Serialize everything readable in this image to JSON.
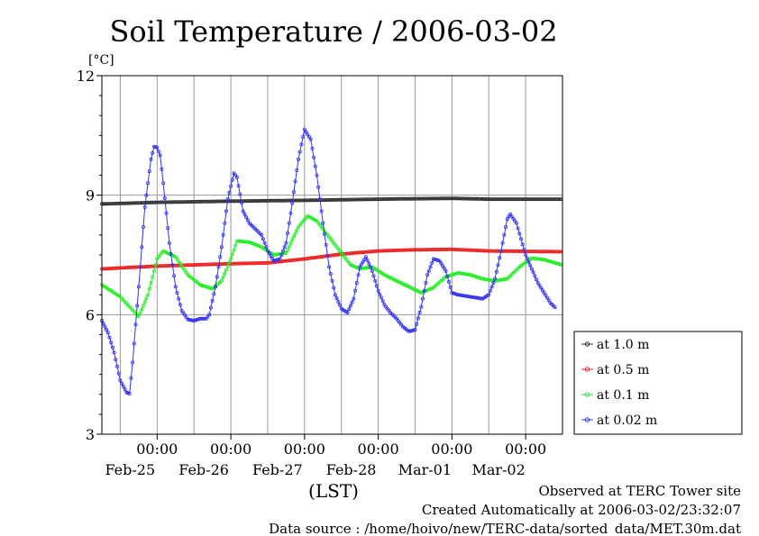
{
  "chart_data": {
    "type": "line",
    "title": "Soil Temperature / 2006-03-02",
    "ylabel": "[°C]",
    "xlabel": "(LST)",
    "ylim": [
      3,
      12
    ],
    "yticks": [
      3,
      6,
      9,
      12
    ],
    "xlim_hours": [
      -18,
      132
    ],
    "xticks": [
      {
        "time": "00:00",
        "date": "Feb-25"
      },
      {
        "time": "00:00",
        "date": "Feb-26"
      },
      {
        "time": "00:00",
        "date": "Feb-27"
      },
      {
        "time": "00:00",
        "date": "Feb-28"
      },
      {
        "time": "00:00",
        "date": "Mar-01"
      },
      {
        "time": "00:00",
        "date": "Mar-02"
      }
    ],
    "grid": true,
    "legend_position": "right",
    "series": [
      {
        "name": "at 1.0 m",
        "color": "#333333",
        "points": [
          [
            -18,
            8.78
          ],
          [
            0,
            8.82
          ],
          [
            24,
            8.85
          ],
          [
            48,
            8.87
          ],
          [
            72,
            8.9
          ],
          [
            96,
            8.92
          ],
          [
            108,
            8.9
          ],
          [
            132,
            8.9
          ]
        ]
      },
      {
        "name": "at 0.5 m",
        "color": "#ee2222",
        "points": [
          [
            -18,
            7.15
          ],
          [
            0,
            7.22
          ],
          [
            24,
            7.28
          ],
          [
            36,
            7.3
          ],
          [
            48,
            7.4
          ],
          [
            60,
            7.52
          ],
          [
            72,
            7.6
          ],
          [
            84,
            7.63
          ],
          [
            96,
            7.64
          ],
          [
            108,
            7.6
          ],
          [
            132,
            7.58
          ]
        ]
      },
      {
        "name": "at 0.1 m",
        "color": "#22ee22",
        "points": [
          [
            -18,
            6.75
          ],
          [
            -12,
            6.45
          ],
          [
            -6,
            5.95
          ],
          [
            -3,
            6.5
          ],
          [
            0,
            7.4
          ],
          [
            2,
            7.6
          ],
          [
            6,
            7.45
          ],
          [
            10,
            7.0
          ],
          [
            14,
            6.75
          ],
          [
            18,
            6.65
          ],
          [
            21,
            6.85
          ],
          [
            24,
            7.4
          ],
          [
            26,
            7.85
          ],
          [
            30,
            7.82
          ],
          [
            34,
            7.7
          ],
          [
            38,
            7.5
          ],
          [
            42,
            7.55
          ],
          [
            46,
            8.2
          ],
          [
            49,
            8.48
          ],
          [
            52,
            8.35
          ],
          [
            56,
            7.95
          ],
          [
            60,
            7.55
          ],
          [
            63,
            7.25
          ],
          [
            66,
            7.15
          ],
          [
            70,
            7.2
          ],
          [
            74,
            7.0
          ],
          [
            78,
            6.85
          ],
          [
            82,
            6.7
          ],
          [
            86,
            6.55
          ],
          [
            90,
            6.68
          ],
          [
            94,
            6.95
          ],
          [
            98,
            7.05
          ],
          [
            102,
            7.0
          ],
          [
            106,
            6.9
          ],
          [
            110,
            6.85
          ],
          [
            114,
            6.9
          ],
          [
            118,
            7.2
          ],
          [
            122,
            7.42
          ],
          [
            126,
            7.38
          ],
          [
            132,
            7.25
          ]
        ]
      },
      {
        "name": "at 0.02 m",
        "color": "#3333ee",
        "points": [
          [
            -18,
            5.85
          ],
          [
            -16,
            5.55
          ],
          [
            -14,
            5.05
          ],
          [
            -12,
            4.35
          ],
          [
            -10,
            4.05
          ],
          [
            -9,
            4.02
          ],
          [
            -8,
            4.8
          ],
          [
            -6,
            6.7
          ],
          [
            -4,
            8.7
          ],
          [
            -2,
            9.9
          ],
          [
            -1,
            10.22
          ],
          [
            0,
            10.2
          ],
          [
            1,
            10.0
          ],
          [
            2,
            9.3
          ],
          [
            4,
            7.8
          ],
          [
            6,
            6.7
          ],
          [
            8,
            6.1
          ],
          [
            10,
            5.88
          ],
          [
            12,
            5.85
          ],
          [
            14,
            5.9
          ],
          [
            16,
            5.9
          ],
          [
            17,
            6.0
          ],
          [
            19,
            6.7
          ],
          [
            21,
            7.7
          ],
          [
            23,
            8.9
          ],
          [
            25,
            9.55
          ],
          [
            26,
            9.45
          ],
          [
            28,
            8.6
          ],
          [
            30,
            8.3
          ],
          [
            32,
            8.15
          ],
          [
            34,
            8.0
          ],
          [
            36,
            7.6
          ],
          [
            38,
            7.35
          ],
          [
            40,
            7.4
          ],
          [
            42,
            7.8
          ],
          [
            44,
            8.8
          ],
          [
            46,
            9.9
          ],
          [
            48,
            10.65
          ],
          [
            50,
            10.4
          ],
          [
            52,
            9.5
          ],
          [
            54,
            8.3
          ],
          [
            56,
            7.2
          ],
          [
            58,
            6.5
          ],
          [
            60,
            6.15
          ],
          [
            62,
            6.05
          ],
          [
            64,
            6.4
          ],
          [
            66,
            7.2
          ],
          [
            68,
            7.45
          ],
          [
            70,
            7.1
          ],
          [
            72,
            6.6
          ],
          [
            74,
            6.25
          ],
          [
            76,
            6.05
          ],
          [
            78,
            5.9
          ],
          [
            80,
            5.7
          ],
          [
            82,
            5.58
          ],
          [
            84,
            5.62
          ],
          [
            86,
            6.2
          ],
          [
            88,
            7.0
          ],
          [
            90,
            7.4
          ],
          [
            92,
            7.35
          ],
          [
            94,
            7.1
          ],
          [
            96,
            6.55
          ],
          [
            98,
            6.5
          ],
          [
            102,
            6.45
          ],
          [
            106,
            6.4
          ],
          [
            108,
            6.5
          ],
          [
            110,
            6.9
          ],
          [
            112,
            7.6
          ],
          [
            114,
            8.4
          ],
          [
            115,
            8.52
          ],
          [
            117,
            8.3
          ],
          [
            120,
            7.5
          ],
          [
            124,
            6.8
          ],
          [
            128,
            6.3
          ],
          [
            130,
            6.15
          ]
        ]
      }
    ]
  },
  "footer": {
    "line1": "Observed at TERC Tower site",
    "line2": "Created Automatically at 2006-03-02/23:32:07",
    "line3": "Data source : /home/hoivo/new/TERC-data/sorted_data/MET.30m.dat"
  }
}
